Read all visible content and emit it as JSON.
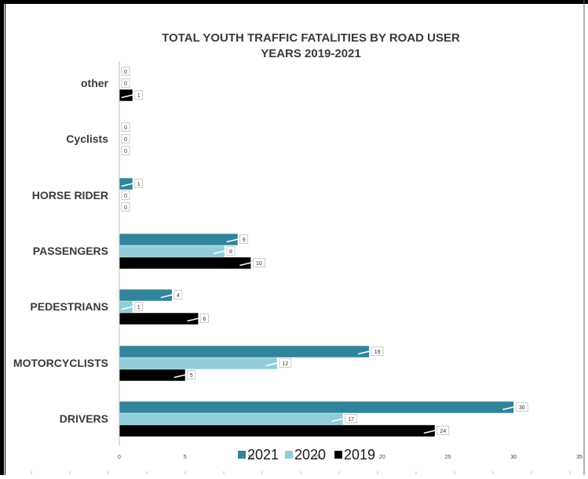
{
  "chart_data": {
    "type": "bar",
    "orientation": "horizontal",
    "title": "TOTAL YOUTH TRAFFIC FATALITIES BY ROAD USER",
    "subtitle": "YEARS 2019-2021",
    "categories": [
      "other",
      "Cyclists",
      "HORSE RIDER",
      "PASSENGERS",
      "PEDESTRIANS",
      "MOTORCYCLISTS",
      "DRIVERS"
    ],
    "series": [
      {
        "name": "2021",
        "color": "#31849b",
        "values": [
          0,
          0,
          1,
          9,
          4,
          19,
          30
        ]
      },
      {
        "name": "2020",
        "color": "#92cddc",
        "values": [
          0,
          0,
          0,
          8,
          1,
          12,
          17
        ]
      },
      {
        "name": "2019",
        "color": "#000000",
        "values": [
          1,
          0,
          0,
          10,
          6,
          5,
          24
        ]
      }
    ],
    "xlim": [
      0,
      35
    ],
    "xticks": [
      "0",
      "5",
      "10",
      "15",
      "20",
      "25",
      "30",
      "35"
    ],
    "xlabel": "",
    "ylabel": "",
    "legend_position": "bottom",
    "data_labels": true,
    "grid": false
  }
}
